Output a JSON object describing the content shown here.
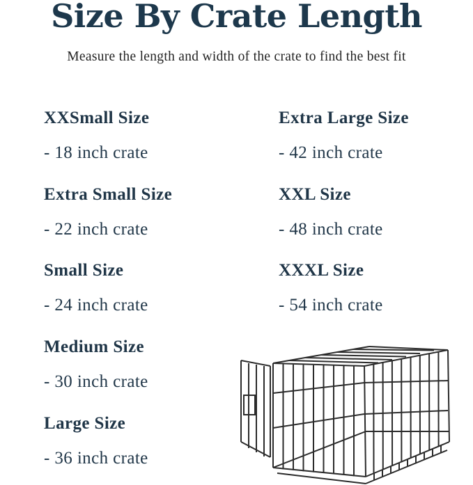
{
  "title": "Size By Crate Length",
  "subtitle": "Measure the length and width of the crate to find the best fit",
  "left_column": [
    {
      "size": "XXSmall Size",
      "crate": "- 18 inch crate"
    },
    {
      "size": "Extra Small Size",
      "crate": "- 22 inch crate"
    },
    {
      "size": "Small Size",
      "crate": "- 24 inch crate"
    },
    {
      "size": "Medium Size",
      "crate": "- 30 inch crate"
    },
    {
      "size": "Large Size",
      "crate": "- 36 inch crate"
    }
  ],
  "right_column": [
    {
      "size": "Extra Large Size",
      "crate": "- 42 inch crate"
    },
    {
      "size": "XXL Size",
      "crate": "- 48 inch crate"
    },
    {
      "size": "XXXL Size",
      "crate": "- 54 inch crate"
    }
  ],
  "colors": {
    "text": "#1f3547",
    "crate": "#2b2b2b"
  },
  "illustration": "wire-dog-crate"
}
